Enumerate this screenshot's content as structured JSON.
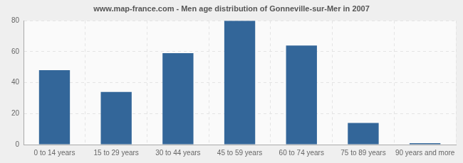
{
  "chart_data": {
    "type": "bar",
    "title": "www.map-france.com - Men age distribution of Gonneville-sur-Mer in 2007",
    "categories": [
      "0 to 14 years",
      "15 to 29 years",
      "30 to 44 years",
      "45 to 59 years",
      "60 to 74 years",
      "75 to 89 years",
      "90 years and more"
    ],
    "values": [
      48,
      34,
      59,
      80,
      64,
      14,
      0
    ],
    "color": "#336699",
    "ylim": [
      0,
      80
    ],
    "yticks": [
      0,
      20,
      40,
      60,
      80
    ],
    "grid": true
  }
}
